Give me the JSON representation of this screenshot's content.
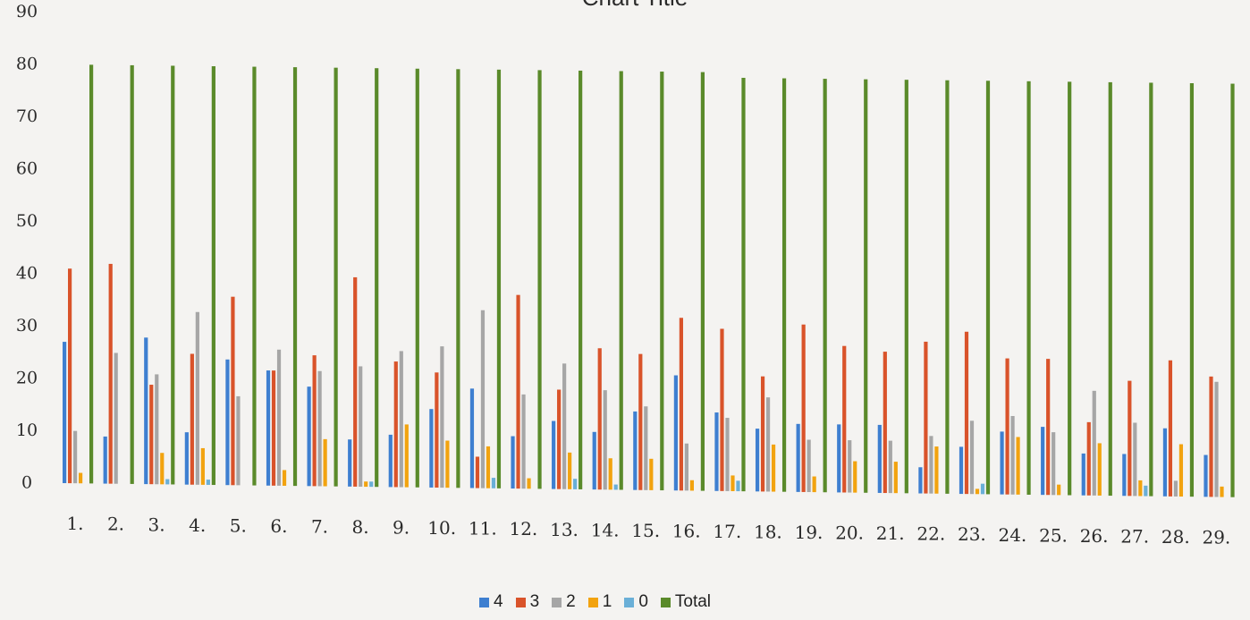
{
  "chart_data": {
    "type": "bar",
    "title": "Chart Title",
    "xlabel": "",
    "ylabel": "",
    "ylim": [
      0,
      90
    ],
    "yticks": [
      0,
      10,
      20,
      30,
      40,
      50,
      60,
      70,
      80,
      90
    ],
    "grid": false,
    "legend_position": "bottom",
    "categories": [
      "1.",
      "2.",
      "3.",
      "4.",
      "5.",
      "6.",
      "7.",
      "8.",
      "9.",
      "10.",
      "11.",
      "12.",
      "13.",
      "14.",
      "15.",
      "16.",
      "17.",
      "18.",
      "19.",
      "20.",
      "21.",
      "22.",
      "23.",
      "24.",
      "25.",
      "26.",
      "27.",
      "28.",
      "29."
    ],
    "series": [
      {
        "name": "4",
        "color": "#3e7fd0",
        "values": [
          27,
          9,
          28,
          10,
          24,
          22,
          19,
          9,
          10,
          15,
          19,
          10,
          13,
          11,
          15,
          22,
          15,
          12,
          13,
          13,
          13,
          5,
          9,
          12,
          13,
          8,
          8,
          13,
          8
        ]
      },
      {
        "name": "3",
        "color": "#d9532a",
        "values": [
          41,
          42,
          19,
          25,
          36,
          22,
          25,
          40,
          24,
          22,
          6,
          37,
          19,
          27,
          26,
          33,
          31,
          22,
          32,
          28,
          27,
          29,
          31,
          26,
          26,
          14,
          22,
          26,
          23
        ]
      },
      {
        "name": "2",
        "color": "#a6a6a6",
        "values": [
          10,
          25,
          21,
          33,
          17,
          26,
          22,
          23,
          26,
          27,
          34,
          18,
          24,
          19,
          16,
          9,
          14,
          18,
          10,
          10,
          10,
          11,
          14,
          15,
          12,
          20,
          14,
          3,
          22
        ]
      },
      {
        "name": "1",
        "color": "#f2a30f",
        "values": [
          2,
          0,
          6,
          7,
          0,
          3,
          9,
          1,
          12,
          9,
          8,
          2,
          7,
          6,
          6,
          2,
          3,
          9,
          3,
          6,
          6,
          9,
          1,
          11,
          2,
          10,
          3,
          10,
          2
        ]
      },
      {
        "name": "0",
        "color": "#6aafd7",
        "values": [
          0,
          0,
          1,
          1,
          0,
          0,
          0,
          1,
          0,
          0,
          2,
          0,
          2,
          1,
          0,
          0,
          2,
          0,
          0,
          0,
          0,
          0,
          2,
          0,
          0,
          0,
          2,
          0,
          0
        ]
      },
      {
        "name": "Total",
        "color": "#5a8a2a",
        "values": [
          80,
          80,
          80,
          80,
          80,
          80,
          80,
          80,
          80,
          80,
          80,
          80,
          80,
          80,
          80,
          80,
          79,
          79,
          79,
          79,
          79,
          79,
          79,
          79,
          79,
          79,
          79,
          79,
          79
        ]
      }
    ]
  }
}
